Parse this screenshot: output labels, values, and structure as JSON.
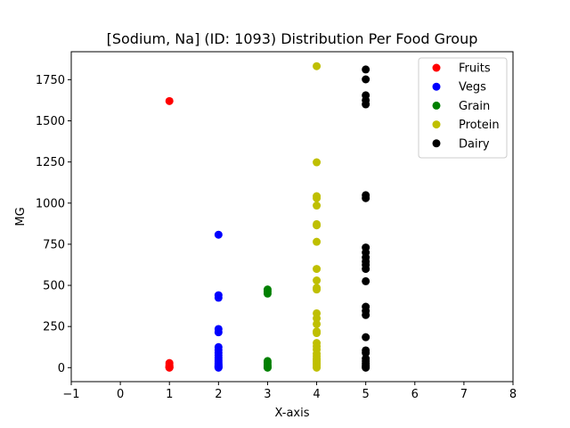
{
  "chart_data": {
    "type": "scatter",
    "title": "[Sodium, Na] (ID: 1093) Distribution Per Food Group",
    "xlabel": "X-axis",
    "ylabel": "MG",
    "xlim": [
      -1,
      8
    ],
    "ylim": [
      -85,
      1920
    ],
    "xticks": [
      -1,
      0,
      1,
      2,
      3,
      4,
      5,
      6,
      7,
      8
    ],
    "yticks": [
      0,
      250,
      500,
      750,
      1000,
      1250,
      1500,
      1750
    ],
    "grid": false,
    "legend_position": "top-right",
    "series": [
      {
        "name": "Fruits",
        "color": "#ff0000",
        "points": [
          [
            1,
            1620
          ],
          [
            1,
            28
          ],
          [
            1,
            15
          ],
          [
            1,
            8
          ],
          [
            1,
            4
          ],
          [
            1,
            2
          ],
          [
            1,
            1
          ],
          [
            1,
            0
          ]
        ]
      },
      {
        "name": "Vegs",
        "color": "#0000ff",
        "points": [
          [
            2,
            808
          ],
          [
            2,
            440
          ],
          [
            2,
            425
          ],
          [
            2,
            235
          ],
          [
            2,
            215
          ],
          [
            2,
            125
          ],
          [
            2,
            108
          ],
          [
            2,
            90
          ],
          [
            2,
            75
          ],
          [
            2,
            60
          ],
          [
            2,
            45
          ],
          [
            2,
            35
          ],
          [
            2,
            25
          ],
          [
            2,
            18
          ],
          [
            2,
            12
          ],
          [
            2,
            8
          ],
          [
            2,
            5
          ],
          [
            2,
            2
          ],
          [
            2,
            0
          ]
        ]
      },
      {
        "name": "Grain",
        "color": "#008000",
        "points": [
          [
            3,
            475
          ],
          [
            3,
            462
          ],
          [
            3,
            450
          ],
          [
            3,
            40
          ],
          [
            3,
            30
          ],
          [
            3,
            18
          ],
          [
            3,
            10
          ],
          [
            3,
            5
          ],
          [
            3,
            2
          ],
          [
            3,
            0
          ]
        ]
      },
      {
        "name": "Protein",
        "color": "#bfbf00",
        "points": [
          [
            4,
            1832
          ],
          [
            4,
            1248
          ],
          [
            4,
            1042
          ],
          [
            4,
            1030
          ],
          [
            4,
            985
          ],
          [
            4,
            872
          ],
          [
            4,
            865
          ],
          [
            4,
            765
          ],
          [
            4,
            600
          ],
          [
            4,
            530
          ],
          [
            4,
            485
          ],
          [
            4,
            475
          ],
          [
            4,
            330
          ],
          [
            4,
            300
          ],
          [
            4,
            265
          ],
          [
            4,
            220
          ],
          [
            4,
            210
          ],
          [
            4,
            150
          ],
          [
            4,
            130
          ],
          [
            4,
            110
          ],
          [
            4,
            85
          ],
          [
            4,
            70
          ],
          [
            4,
            55
          ],
          [
            4,
            45
          ],
          [
            4,
            35
          ],
          [
            4,
            25
          ],
          [
            4,
            15
          ],
          [
            4,
            5
          ],
          [
            4,
            0
          ]
        ]
      },
      {
        "name": "Dairy",
        "color": "#000000",
        "points": [
          [
            5,
            1812
          ],
          [
            5,
            1752
          ],
          [
            5,
            1655
          ],
          [
            5,
            1625
          ],
          [
            5,
            1600
          ],
          [
            5,
            1048
          ],
          [
            5,
            1030
          ],
          [
            5,
            730
          ],
          [
            5,
            700
          ],
          [
            5,
            670
          ],
          [
            5,
            645
          ],
          [
            5,
            625
          ],
          [
            5,
            600
          ],
          [
            5,
            525
          ],
          [
            5,
            370
          ],
          [
            5,
            345
          ],
          [
            5,
            320
          ],
          [
            5,
            185
          ],
          [
            5,
            105
          ],
          [
            5,
            90
          ],
          [
            5,
            55
          ],
          [
            5,
            40
          ],
          [
            5,
            25
          ],
          [
            5,
            12
          ],
          [
            5,
            5
          ],
          [
            5,
            0
          ]
        ]
      }
    ]
  }
}
